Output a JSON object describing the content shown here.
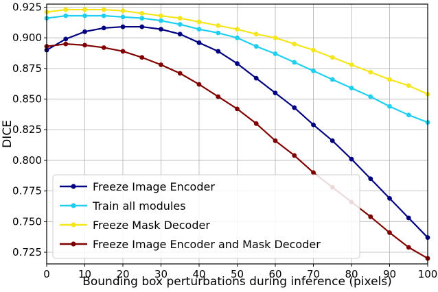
{
  "chart_data": {
    "type": "line",
    "xlabel": "Bounding box perturbations during inference (pixels)",
    "ylabel": "DICE",
    "xlim": [
      0,
      100
    ],
    "ylim": [
      0.7155,
      0.9275
    ],
    "x_ticks": [
      0,
      10,
      20,
      30,
      40,
      50,
      60,
      70,
      80,
      90,
      100
    ],
    "y_ticks": [
      0.725,
      0.75,
      0.775,
      0.8,
      0.825,
      0.85,
      0.875,
      0.9,
      0.925
    ],
    "grid": true,
    "legend_position": "lower-left",
    "x": [
      0,
      5,
      10,
      15,
      20,
      25,
      30,
      35,
      40,
      45,
      50,
      55,
      60,
      65,
      70,
      75,
      80,
      85,
      90,
      95,
      100
    ],
    "series": [
      {
        "name": "Freeze Image Encoder",
        "color": "#000080",
        "values": [
          0.89,
          0.899,
          0.905,
          0.908,
          0.909,
          0.909,
          0.907,
          0.903,
          0.896,
          0.889,
          0.879,
          0.867,
          0.855,
          0.843,
          0.829,
          0.816,
          0.801,
          0.785,
          0.769,
          0.753,
          0.737
        ]
      },
      {
        "name": "Train all modules",
        "color": "#1fcff0",
        "values": [
          0.916,
          0.918,
          0.918,
          0.918,
          0.917,
          0.916,
          0.914,
          0.911,
          0.907,
          0.904,
          0.9,
          0.893,
          0.887,
          0.88,
          0.873,
          0.866,
          0.859,
          0.852,
          0.844,
          0.837,
          0.831
        ]
      },
      {
        "name": "Freeze Mask Decoder",
        "color": "#f5e61a",
        "values": [
          0.921,
          0.923,
          0.923,
          0.923,
          0.922,
          0.92,
          0.918,
          0.916,
          0.913,
          0.91,
          0.907,
          0.903,
          0.9,
          0.895,
          0.89,
          0.884,
          0.878,
          0.872,
          0.866,
          0.861,
          0.854
        ]
      },
      {
        "name": "Freeze Image Encoder and Mask Decoder",
        "color": "#800000",
        "values": [
          0.893,
          0.895,
          0.894,
          0.892,
          0.889,
          0.884,
          0.878,
          0.871,
          0.862,
          0.852,
          0.842,
          0.83,
          0.816,
          0.804,
          0.79,
          0.778,
          0.766,
          0.754,
          0.741,
          0.729,
          0.72
        ]
      }
    ]
  }
}
